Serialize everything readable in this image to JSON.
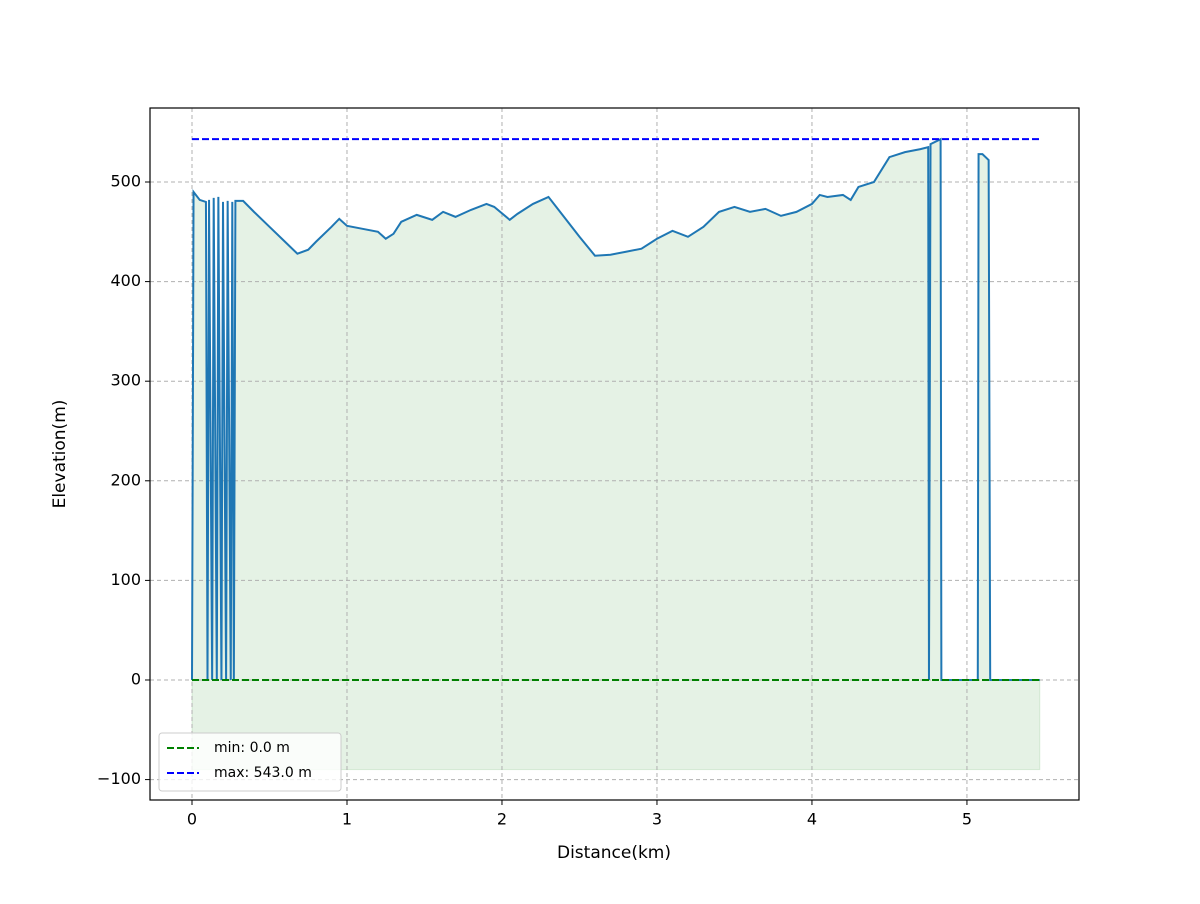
{
  "chart_data": {
    "type": "line",
    "xlabel": "Distance(km)",
    "ylabel": "Elevation(m)",
    "xlim": [
      -0.271,
      5.723
    ],
    "ylim": [
      -120.5,
      574.3
    ],
    "xticks": [
      0,
      1,
      2,
      3,
      4,
      5
    ],
    "yticks": [
      {
        "value": -100,
        "label": "−100"
      },
      0,
      100,
      200,
      300,
      400,
      500
    ],
    "grid": true,
    "legend": "lower left",
    "fill": {
      "color": "green",
      "base": -90
    },
    "series": [
      {
        "color": "#1f77b4",
        "x": [
          0,
          0.01,
          0.05,
          0.09,
          0.1,
          0.11,
          0.13,
          0.14,
          0.16,
          0.17,
          0.19,
          0.2,
          0.22,
          0.23,
          0.25,
          0.26,
          0.27,
          0.28,
          0.33,
          0.4,
          0.5,
          0.6,
          0.68,
          0.75,
          0.8,
          0.9,
          0.95,
          1.0,
          1.1,
          1.2,
          1.25,
          1.3,
          1.35,
          1.45,
          1.55,
          1.62,
          1.7,
          1.8,
          1.9,
          1.95,
          2.05,
          2.1,
          2.2,
          2.3,
          2.35,
          2.5,
          2.6,
          2.7,
          2.8,
          2.9,
          3.0,
          3.1,
          3.2,
          3.3,
          3.4,
          3.5,
          3.6,
          3.7,
          3.8,
          3.9,
          4.0,
          4.05,
          4.1,
          4.2,
          4.25,
          4.3,
          4.4,
          4.5,
          4.6,
          4.7,
          4.75,
          4.755,
          4.765,
          4.83,
          4.835,
          5.07,
          5.075,
          5.1,
          5.14,
          5.15,
          5.47
        ],
        "values": [
          0,
          490,
          482,
          480,
          0,
          482,
          0,
          484,
          0,
          485,
          0,
          480,
          0,
          481,
          0,
          480,
          0,
          481,
          481,
          470,
          455,
          440,
          428,
          432,
          440,
          455,
          463,
          456,
          453,
          450,
          443,
          448,
          460,
          467,
          462,
          470,
          465,
          472,
          478,
          475,
          462,
          468,
          478,
          485,
          475,
          445,
          426,
          427,
          430,
          433,
          443,
          451,
          445,
          455,
          470,
          475,
          470,
          473,
          466,
          470,
          478,
          487,
          485,
          487,
          482,
          495,
          500,
          525,
          530,
          533,
          535,
          0,
          538,
          543,
          0,
          0,
          528,
          528,
          522,
          0,
          0
        ]
      },
      {
        "name": "min: 0.0 m",
        "color": "green",
        "dash": true,
        "x": [
          0,
          5.47
        ],
        "values": [
          0,
          0
        ]
      },
      {
        "name": "max: 543.0 m",
        "color": "blue",
        "dash": true,
        "x": [
          0,
          5.47
        ],
        "values": [
          543,
          543
        ]
      }
    ]
  }
}
